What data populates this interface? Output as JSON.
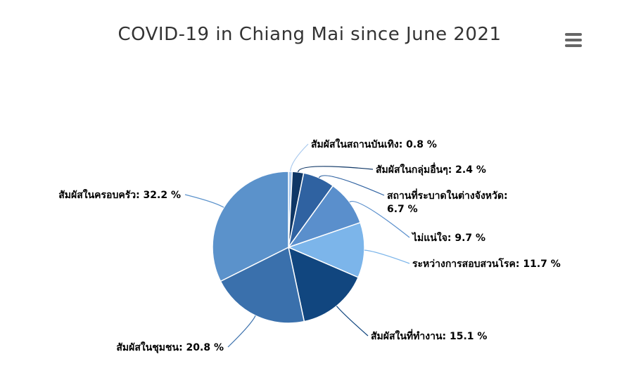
{
  "chart_data": {
    "type": "pie",
    "title": "COVID-19 in Chiang Mai since June 2021",
    "slices": [
      {
        "label": "สัมผัสในสถานบันเทิง",
        "value": 0.8,
        "color": "#a9c9ee",
        "lines": [
          "สัมผัสในสถานบันเทิง: 0.8 %"
        ]
      },
      {
        "label": "สัมผัสในกลุ่มอื่นๆ",
        "value": 2.4,
        "color": "#0f3766",
        "lines": [
          "สัมผัสในกลุ่มอื่นๆ: 2.4 %"
        ]
      },
      {
        "label": "สถานที่ระบาดในต่างจังหวัด",
        "value": 6.7,
        "color": "#2f62a1",
        "lines": [
          "สถานที่ระบาดในต่างจังหวัด:",
          "6.7 %"
        ]
      },
      {
        "label": "ไม่แน่ใจ",
        "value": 9.7,
        "color": "#5a8fcc",
        "lines": [
          "ไม่แน่ใจ: 9.7 %"
        ]
      },
      {
        "label": "ระหว่างการสอบสวนโรค",
        "value": 11.7,
        "color": "#7cb5ea",
        "lines": [
          "ระหว่างการสอบสวนโรค: 11.7 %"
        ]
      },
      {
        "label": "สัมผัสในที่ทำงาน",
        "value": 15.1,
        "color": "#11467f",
        "lines": [
          "สัมผัสในที่ทำงาน: 15.1 %"
        ]
      },
      {
        "label": "สัมผัสในชุมชน",
        "value": 20.8,
        "color": "#3a70ac",
        "lines": [
          "สัมผัสในชุมชน: 20.8 %"
        ]
      },
      {
        "label": "สัมผัสในครอบครัว",
        "value": 32.2,
        "color": "#5b92cb",
        "lines": [
          "สัมผัสในครอบครัว: 32.2 %"
        ]
      }
    ]
  },
  "menu": {
    "icon": "hamburger-menu-icon"
  }
}
